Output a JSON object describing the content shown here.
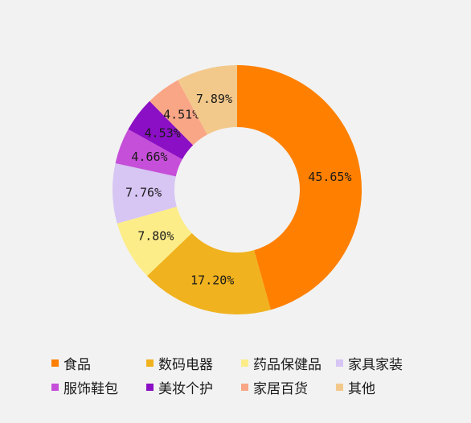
{
  "chart_data": {
    "type": "pie",
    "donut": true,
    "title": "",
    "legend_position": "bottom",
    "series": [
      {
        "name": "食品",
        "value": 45.65,
        "label": "45.65%",
        "color": "#ff8000"
      },
      {
        "name": "数码电器",
        "value": 17.2,
        "label": "17.20%",
        "color": "#f0b21e"
      },
      {
        "name": "药品保健品",
        "value": 7.8,
        "label": "7.80%",
        "color": "#fced89"
      },
      {
        "name": "家具家装",
        "value": 7.76,
        "label": "7.76%",
        "color": "#d7c5f4"
      },
      {
        "name": "服饰鞋包",
        "value": 4.66,
        "label": "4.66%",
        "color": "#c54fd8"
      },
      {
        "name": "美妆个护",
        "value": 4.53,
        "label": "4.53%",
        "color": "#8b0fc4"
      },
      {
        "name": "家居百货",
        "value": 4.51,
        "label": "4.51%",
        "color": "#f9a686"
      },
      {
        "name": "其他",
        "value": 7.89,
        "label": "7.89%",
        "color": "#f3c98b"
      }
    ]
  }
}
